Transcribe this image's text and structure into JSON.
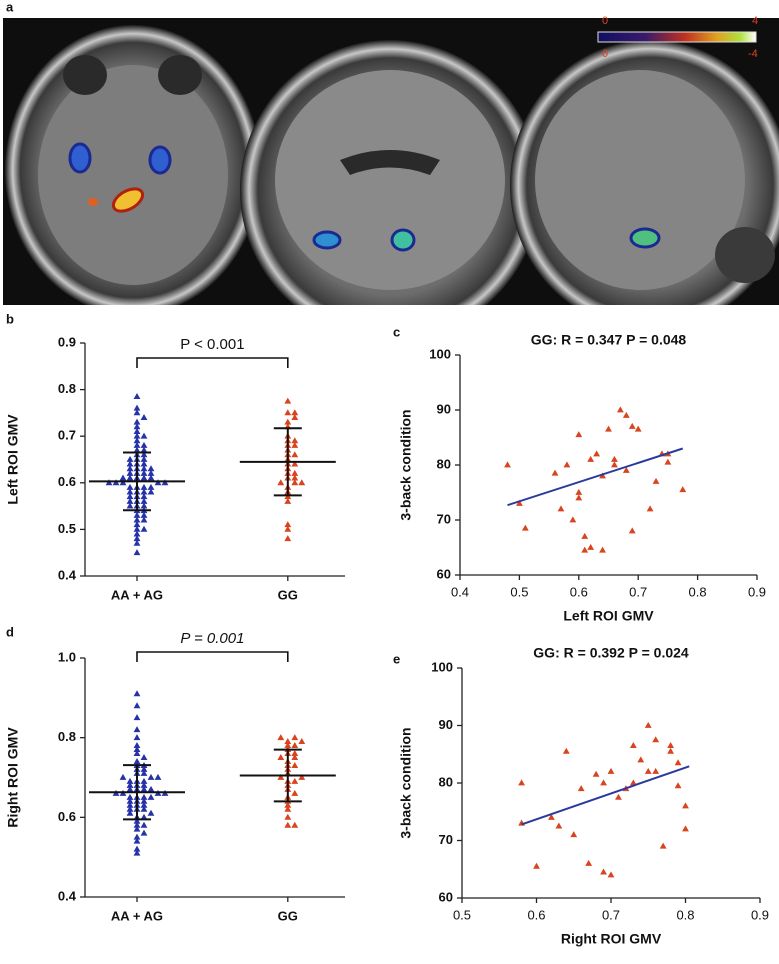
{
  "figure": {
    "panel_label": "a",
    "colorbar_labels": [
      "0",
      "4",
      "0",
      "-4"
    ]
  },
  "chart_data": [
    {
      "type": "beeswarm",
      "panel": "b",
      "ylabel": "Left ROI GMV",
      "annotation": "P < 0.001",
      "categories": [
        "AA + AG",
        "GG"
      ],
      "colors": [
        "#2633a8",
        "#d9431e"
      ],
      "values": [
        [
          0.45,
          0.47,
          0.48,
          0.49,
          0.5,
          0.5,
          0.51,
          0.52,
          0.52,
          0.53,
          0.53,
          0.54,
          0.54,
          0.55,
          0.55,
          0.55,
          0.56,
          0.56,
          0.56,
          0.57,
          0.57,
          0.57,
          0.58,
          0.58,
          0.58,
          0.58,
          0.59,
          0.59,
          0.59,
          0.59,
          0.6,
          0.6,
          0.6,
          0.6,
          0.6,
          0.61,
          0.61,
          0.61,
          0.61,
          0.61,
          0.62,
          0.62,
          0.62,
          0.62,
          0.63,
          0.63,
          0.63,
          0.63,
          0.64,
          0.64,
          0.64,
          0.65,
          0.65,
          0.65,
          0.66,
          0.66,
          0.67,
          0.67,
          0.68,
          0.68,
          0.69,
          0.7,
          0.7,
          0.71,
          0.72,
          0.73,
          0.74,
          0.75,
          0.76,
          0.785
        ],
        [
          0.48,
          0.51,
          0.5,
          0.56,
          0.57,
          0.58,
          0.59,
          0.6,
          0.6,
          0.6,
          0.61,
          0.61,
          0.62,
          0.62,
          0.63,
          0.64,
          0.64,
          0.65,
          0.66,
          0.66,
          0.67,
          0.68,
          0.68,
          0.69,
          0.69,
          0.7,
          0.72,
          0.73,
          0.74,
          0.75,
          0.75,
          0.775
        ]
      ],
      "means": [
        0.603,
        0.645
      ],
      "sds": [
        0.062,
        0.072
      ],
      "ylim": [
        0.4,
        0.9
      ],
      "yticks": [
        0.4,
        0.5,
        0.6,
        0.7,
        0.8,
        0.9
      ]
    },
    {
      "type": "scatter",
      "panel": "c",
      "title": "GG: R = 0.347 P = 0.048",
      "xlabel": "Left ROI GMV",
      "ylabel": "3-back condition",
      "color": "#d9431e",
      "line_color": "#2a3a9c",
      "x": [
        0.48,
        0.51,
        0.5,
        0.56,
        0.57,
        0.58,
        0.59,
        0.6,
        0.6,
        0.6,
        0.61,
        0.61,
        0.62,
        0.62,
        0.63,
        0.64,
        0.64,
        0.65,
        0.66,
        0.66,
        0.67,
        0.68,
        0.68,
        0.69,
        0.69,
        0.7,
        0.72,
        0.73,
        0.74,
        0.75,
        0.75,
        0.775
      ],
      "y": [
        80,
        68.5,
        73,
        78.5,
        72,
        80,
        70,
        85.5,
        75,
        74,
        67,
        64.5,
        81,
        65,
        82,
        64.5,
        78,
        86.5,
        80,
        81,
        90,
        89,
        79,
        87,
        68,
        86.5,
        72,
        77,
        82,
        82,
        80.5,
        75.5
      ],
      "fit": {
        "x": [
          0.48,
          0.775
        ],
        "y": [
          72.7,
          83.0
        ]
      },
      "xlim": [
        0.4,
        0.9
      ],
      "xticks": [
        0.4,
        0.5,
        0.6,
        0.7,
        0.8,
        0.9
      ],
      "ylim": [
        60,
        100
      ],
      "yticks": [
        60,
        70,
        80,
        90,
        100
      ]
    },
    {
      "type": "beeswarm",
      "panel": "d",
      "ylabel": "Right ROI GMV",
      "annotation": "P = 0.001",
      "categories": [
        "AA + AG",
        "GG"
      ],
      "colors": [
        "#2633a8",
        "#d9431e"
      ],
      "values": [
        [
          0.51,
          0.52,
          0.54,
          0.55,
          0.56,
          0.57,
          0.58,
          0.58,
          0.59,
          0.6,
          0.6,
          0.61,
          0.61,
          0.62,
          0.62,
          0.62,
          0.63,
          0.63,
          0.63,
          0.64,
          0.64,
          0.64,
          0.65,
          0.65,
          0.65,
          0.65,
          0.66,
          0.66,
          0.66,
          0.66,
          0.67,
          0.67,
          0.67,
          0.67,
          0.68,
          0.68,
          0.68,
          0.69,
          0.69,
          0.69,
          0.7,
          0.7,
          0.7,
          0.71,
          0.71,
          0.72,
          0.72,
          0.73,
          0.73,
          0.74,
          0.75,
          0.76,
          0.77,
          0.78,
          0.8,
          0.82,
          0.85,
          0.88,
          0.91
        ],
        [
          0.58,
          0.58,
          0.6,
          0.62,
          0.63,
          0.64,
          0.65,
          0.66,
          0.67,
          0.68,
          0.69,
          0.69,
          0.7,
          0.7,
          0.71,
          0.72,
          0.73,
          0.73,
          0.74,
          0.75,
          0.75,
          0.76,
          0.76,
          0.77,
          0.78,
          0.78,
          0.79,
          0.8,
          0.8,
          0.79
        ]
      ],
      "means": [
        0.663,
        0.705
      ],
      "sds": [
        0.068,
        0.065
      ],
      "ylim": [
        0.4,
        1.0
      ],
      "yticks": [
        0.4,
        0.6,
        0.8,
        {
          "value": 1.0,
          "label": "1.0"
        }
      ]
    },
    {
      "type": "scatter",
      "panel": "e",
      "title": "GG: R = 0.392 P = 0.024",
      "xlabel": "Right ROI GMV",
      "ylabel": "3-back condition",
      "color": "#d9431e",
      "line_color": "#2a3a9c",
      "x": [
        0.58,
        0.58,
        0.6,
        0.62,
        0.63,
        0.64,
        0.65,
        0.66,
        0.67,
        0.68,
        0.69,
        0.69,
        0.7,
        0.7,
        0.71,
        0.72,
        0.73,
        0.73,
        0.74,
        0.75,
        0.75,
        0.76,
        0.76,
        0.77,
        0.78,
        0.78,
        0.79,
        0.8,
        0.8,
        0.79
      ],
      "y": [
        80,
        73,
        65.5,
        74,
        72.5,
        85.5,
        71,
        79,
        66,
        81.5,
        80,
        64.5,
        64,
        82,
        77.5,
        79,
        80,
        86.5,
        84,
        90,
        82,
        82,
        87.5,
        69,
        86.5,
        85.5,
        79.5,
        76,
        72,
        83.5
      ],
      "fit": {
        "x": [
          0.58,
          0.805
        ],
        "y": [
          72.8,
          82.9
        ]
      },
      "xlim": [
        0.5,
        0.9
      ],
      "xticks": [
        0.5,
        0.6,
        0.7,
        0.8,
        0.9
      ],
      "ylim": [
        60,
        100
      ],
      "yticks": [
        60,
        70,
        80,
        90,
        100
      ]
    }
  ]
}
